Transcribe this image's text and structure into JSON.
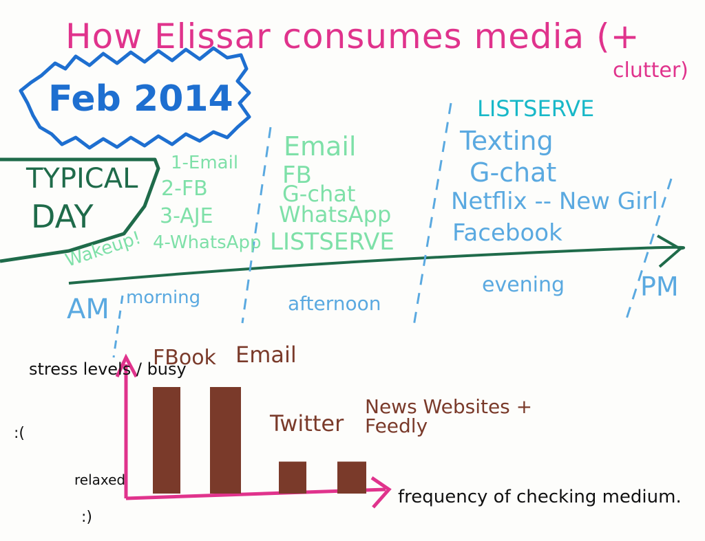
{
  "title": "How Elissar consumes media (+",
  "title_line2": "clutter)",
  "date_badge": "Feb 2014",
  "typical_label_1": "TYPICAL",
  "typical_label_2": "DAY",
  "wakeup": "Wakeup!",
  "morning_list": [
    "1-Email",
    "2-FB",
    "3-AJE",
    "4-WhatsApp"
  ],
  "afternoon_list": [
    "Email",
    "FB",
    "G-chat",
    "WhatsApp",
    "LISTSERVE"
  ],
  "evening_list": [
    "LISTSERVE",
    "Texting",
    "G-chat",
    "Netflix -- New Girl",
    "Facebook"
  ],
  "timeline_labels": {
    "am": "AM",
    "morning": "morning",
    "afternoon": "afternoon",
    "evening": "evening",
    "pm": "PM"
  },
  "colors": {
    "title": "#e0338c",
    "badge": "#1e6fd0",
    "timeline": "#1f6b4a",
    "morning": "#7ee0a8",
    "listserve": "#18b8c8",
    "evening": "#5aa9e0",
    "bars": "#7a3a2a",
    "axes": "#e0338c"
  },
  "chart_data": {
    "type": "bar",
    "categories": [
      "FBook",
      "Email",
      "Twitter",
      "News Websites + Feedly"
    ],
    "values": [
      10,
      10,
      3,
      3
    ],
    "ylabel": "stress levels / busy",
    "ylabel_faces": ":(",
    "relaxed_label": "relaxed",
    "relaxed_face": ":)",
    "xlabel": "frequency of checking medium."
  }
}
